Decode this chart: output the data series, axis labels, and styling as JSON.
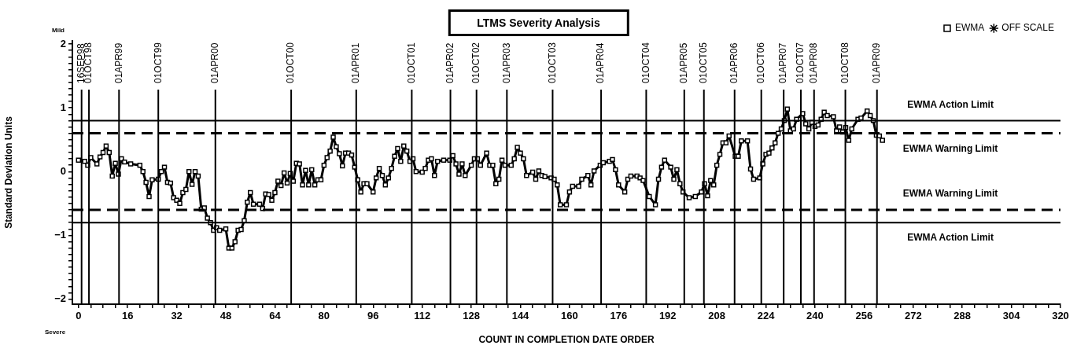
{
  "chart_data": {
    "type": "line",
    "title": "LTMS Severity Analysis",
    "xlabel": "COUNT IN COMPLETION DATE ORDER",
    "ylabel": "Standard Deviation Units",
    "annotations": [
      "Mild",
      "Severe"
    ],
    "legend": "top right",
    "line_style": "solid",
    "xlim": [
      -2,
      320
    ],
    "ylim": [
      -2.08,
      2.05
    ],
    "xticks": [
      0,
      {
        "value": 4,
        "label": null
      },
      {
        "value": 8,
        "label": null
      },
      {
        "value": 12,
        "label": null
      },
      16,
      {
        "value": 20,
        "label": null
      },
      {
        "value": 24,
        "label": null
      },
      {
        "value": 28,
        "label": null
      },
      32,
      {
        "value": 36,
        "label": null
      },
      {
        "value": 40,
        "label": null
      },
      {
        "value": 44,
        "label": null
      },
      48,
      {
        "value": 52,
        "label": null
      },
      {
        "value": 56,
        "label": null
      },
      {
        "value": 60,
        "label": null
      },
      64,
      {
        "value": 68,
        "label": null
      },
      {
        "value": 72,
        "label": null
      },
      {
        "value": 76,
        "label": null
      },
      80,
      {
        "value": 84,
        "label": null
      },
      {
        "value": 88,
        "label": null
      },
      {
        "value": 92,
        "label": null
      },
      96,
      {
        "value": 100,
        "label": null
      },
      {
        "value": 104,
        "label": null
      },
      {
        "value": 108,
        "label": null
      },
      112,
      {
        "value": 116,
        "label": null
      },
      {
        "value": 120,
        "label": null
      },
      {
        "value": 124,
        "label": null
      },
      128,
      {
        "value": 132,
        "label": null
      },
      {
        "value": 136,
        "label": null
      },
      {
        "value": 140,
        "label": null
      },
      144,
      {
        "value": 148,
        "label": null
      },
      {
        "value": 152,
        "label": null
      },
      {
        "value": 156,
        "label": null
      },
      160,
      {
        "value": 164,
        "label": null
      },
      {
        "value": 168,
        "label": null
      },
      {
        "value": 172,
        "label": null
      },
      176,
      {
        "value": 180,
        "label": null
      },
      {
        "value": 184,
        "label": null
      },
      {
        "value": 188,
        "label": null
      },
      192,
      {
        "value": 196,
        "label": null
      },
      {
        "value": 200,
        "label": null
      },
      {
        "value": 204,
        "label": null
      },
      208,
      {
        "value": 212,
        "label": null
      },
      {
        "value": 216,
        "label": null
      },
      {
        "value": 220,
        "label": null
      },
      224,
      {
        "value": 228,
        "label": null
      },
      {
        "value": 232,
        "label": null
      },
      {
        "value": 236,
        "label": null
      },
      240,
      {
        "value": 244,
        "label": null
      },
      {
        "value": 248,
        "label": null
      },
      {
        "value": 252,
        "label": null
      },
      256,
      {
        "value": 260,
        "label": null
      },
      {
        "value": 264,
        "label": null
      },
      {
        "value": 268,
        "label": null
      },
      272,
      {
        "value": 276,
        "label": null
      },
      {
        "value": 280,
        "label": null
      },
      {
        "value": 284,
        "label": null
      },
      288,
      {
        "value": 292,
        "label": null
      },
      {
        "value": 296,
        "label": null
      },
      {
        "value": 300,
        "label": null
      },
      304,
      {
        "value": 308,
        "label": null
      },
      {
        "value": 312,
        "label": null
      },
      {
        "value": 316,
        "label": null
      },
      320
    ],
    "yticks": [
      -2,
      {
        "value": -1.9,
        "label": null
      },
      {
        "value": -1.8,
        "label": null
      },
      {
        "value": -1.7,
        "label": null
      },
      {
        "value": -1.6,
        "label": null
      },
      {
        "value": -1.5,
        "label": null
      },
      {
        "value": -1.4,
        "label": null
      },
      {
        "value": -1.3,
        "label": null
      },
      {
        "value": -1.2,
        "label": null
      },
      {
        "value": -1.1,
        "label": null
      },
      -1,
      {
        "value": -0.9,
        "label": null
      },
      {
        "value": -0.8,
        "label": null
      },
      {
        "value": -0.7,
        "label": null
      },
      {
        "value": -0.6,
        "label": null
      },
      {
        "value": -0.5,
        "label": null
      },
      {
        "value": -0.4,
        "label": null
      },
      {
        "value": -0.3,
        "label": null
      },
      {
        "value": -0.2,
        "label": null
      },
      {
        "value": -0.1,
        "label": null
      },
      0,
      {
        "value": 0.1,
        "label": null
      },
      {
        "value": 0.2,
        "label": null
      },
      {
        "value": 0.3,
        "label": null
      },
      {
        "value": 0.4,
        "label": null
      },
      {
        "value": 0.5,
        "label": null
      },
      {
        "value": 0.6,
        "label": null
      },
      {
        "value": 0.7,
        "label": null
      },
      {
        "value": 0.8,
        "label": null
      },
      {
        "value": 0.9,
        "label": null
      },
      1,
      {
        "value": 1.1,
        "label": null
      },
      {
        "value": 1.2,
        "label": null
      },
      {
        "value": 1.3,
        "label": null
      },
      {
        "value": 1.4,
        "label": null
      },
      {
        "value": 1.5,
        "label": null
      },
      {
        "value": 1.6,
        "label": null
      },
      {
        "value": 1.7,
        "label": null
      },
      {
        "value": 1.8,
        "label": null
      },
      {
        "value": 1.9,
        "label": null
      },
      2
    ],
    "ref_lines": [
      {
        "axis": "y",
        "value": 0.8,
        "label": "EWMA Action Limit",
        "line_style": "solid",
        "color": "#000000"
      },
      {
        "axis": "y",
        "value": 0.6,
        "label": "EWMA Warning Limit",
        "line_style": "dashed",
        "color": "#000000"
      },
      {
        "axis": "y",
        "value": -0.6,
        "label": "EWMA Warning Limit",
        "line_style": "dashed",
        "color": "#000000"
      },
      {
        "axis": "y",
        "value": -0.8,
        "label": "EWMA Action Limit",
        "line_style": "solid",
        "color": "#000000"
      },
      {
        "axis": "x",
        "value": 1,
        "label": "16SEP98"
      },
      {
        "axis": "x",
        "value": 3.4,
        "label": "01OCT98"
      },
      {
        "axis": "x",
        "value": 13.2,
        "label": "01APR99"
      },
      {
        "axis": "x",
        "value": 26,
        "label": "01OCT99"
      },
      {
        "axis": "x",
        "value": 44.6,
        "label": "01APR00"
      },
      {
        "axis": "x",
        "value": 69.3,
        "label": "01OCT00"
      },
      {
        "axis": "x",
        "value": 90.5,
        "label": "01APR01"
      },
      {
        "axis": "x",
        "value": 108.6,
        "label": "01OCT01"
      },
      {
        "axis": "x",
        "value": 121.2,
        "label": "01APR02"
      },
      {
        "axis": "x",
        "value": 129.7,
        "label": "01OCT02"
      },
      {
        "axis": "x",
        "value": 139.6,
        "label": "01APR03"
      },
      {
        "axis": "x",
        "value": 154.5,
        "label": "01OCT03"
      },
      {
        "axis": "x",
        "value": 170.3,
        "label": "01APR04"
      },
      {
        "axis": "x",
        "value": 185,
        "label": "01OCT04"
      },
      {
        "axis": "x",
        "value": 197.4,
        "label": "01APR05"
      },
      {
        "axis": "x",
        "value": 203.8,
        "label": "01OCT05"
      },
      {
        "axis": "x",
        "value": 213.8,
        "label": "01APR06"
      },
      {
        "axis": "x",
        "value": 222.5,
        "label": "01OCT06"
      },
      {
        "axis": "x",
        "value": 229.8,
        "label": "01APR07"
      },
      {
        "axis": "x",
        "value": 235.4,
        "label": "01OCT07"
      },
      {
        "axis": "x",
        "value": 239.7,
        "label": "01APR08"
      },
      {
        "axis": "x",
        "value": 249.9,
        "label": "01OCT08"
      },
      {
        "axis": "x",
        "value": 260.2,
        "label": "01APR09"
      }
    ],
    "series": [
      {
        "name": "EWMA",
        "color": "#000000",
        "marker": "square",
        "x": [
          0,
          2,
          3,
          4,
          6,
          7,
          8,
          9,
          10,
          11,
          12,
          13,
          14,
          15,
          17,
          20,
          21,
          22,
          23,
          24,
          26,
          27,
          28,
          29,
          30,
          31,
          32,
          33,
          34,
          35,
          36,
          37,
          38,
          39,
          40,
          41,
          42,
          43,
          44,
          45,
          46,
          48,
          49,
          50,
          51,
          52,
          53,
          54,
          55,
          56,
          57,
          59,
          60,
          61,
          62,
          63,
          64,
          65,
          66,
          67,
          68,
          69,
          70,
          71,
          72,
          73,
          74,
          75,
          76,
          77,
          78,
          79,
          80,
          81,
          82,
          83,
          84,
          85,
          86,
          87,
          88,
          89,
          90,
          91,
          92,
          93,
          94,
          96,
          97,
          98,
          99,
          100,
          101,
          102,
          103,
          104,
          105,
          106,
          107,
          108,
          109,
          110,
          112,
          113,
          114,
          115,
          116,
          117,
          119,
          121,
          122,
          123,
          124,
          125,
          126,
          128,
          129,
          130,
          131,
          133,
          134,
          135,
          136,
          137,
          138,
          139,
          141,
          142,
          143,
          144,
          145,
          146,
          148,
          149,
          150,
          151,
          152,
          154,
          155,
          156,
          157,
          159,
          160,
          161,
          163,
          164,
          166,
          167,
          168,
          170,
          171,
          173,
          174,
          175,
          176,
          178,
          179,
          180,
          182,
          183,
          184,
          186,
          188,
          189,
          190,
          191,
          193,
          194,
          195,
          196,
          197,
          199,
          201,
          203,
          204,
          205,
          206,
          207,
          208,
          209,
          210,
          211,
          212,
          214,
          215,
          216,
          218,
          219,
          220,
          222,
          223,
          224,
          225,
          226,
          227,
          228,
          229,
          230,
          231,
          232,
          233,
          234,
          236,
          237,
          238,
          239,
          240,
          241,
          242,
          243,
          244,
          246,
          247,
          248,
          249,
          250,
          251,
          252,
          254,
          255,
          257,
          258,
          259,
          260,
          261,
          262
        ],
        "values": [
          0.18,
          0.16,
          0.1,
          0.22,
          0.12,
          0.23,
          0.3,
          0.4,
          0.3,
          -0.07,
          0.13,
          -0.04,
          0.2,
          0.15,
          0.12,
          0.1,
          0.0,
          -0.17,
          -0.39,
          -0.13,
          -0.12,
          0.0,
          0.07,
          -0.17,
          -0.18,
          -0.41,
          -0.45,
          -0.5,
          -0.33,
          -0.28,
          0.0,
          -0.2,
          0.0,
          -0.07,
          -0.59,
          -0.57,
          -0.73,
          -0.8,
          -0.92,
          -0.88,
          -0.92,
          -0.9,
          -1.2,
          -1.2,
          -1.1,
          -0.92,
          -0.91,
          -0.77,
          -0.48,
          -0.33,
          -0.51,
          -0.51,
          -0.58,
          -0.35,
          -0.36,
          -0.45,
          -0.33,
          -0.15,
          -0.22,
          -0.02,
          -0.18,
          -0.03,
          -0.15,
          0.13,
          0.12,
          -0.21,
          0.02,
          -0.21,
          0.03,
          -0.21,
          -0.13,
          -0.13,
          0.1,
          0.22,
          0.32,
          0.54,
          0.39,
          0.28,
          0.09,
          0.29,
          0.29,
          0.26,
          0.07,
          -0.13,
          -0.32,
          -0.19,
          -0.19,
          -0.32,
          -0.1,
          0.05,
          -0.06,
          -0.21,
          -0.1,
          0.05,
          0.24,
          0.36,
          0.16,
          0.4,
          0.32,
          0.16,
          0.2,
          0.0,
          -0.01,
          0.05,
          0.18,
          0.2,
          -0.06,
          0.16,
          0.18,
          0.18,
          0.25,
          0.12,
          -0.04,
          0.12,
          -0.06,
          0.1,
          0.2,
          0.2,
          0.1,
          0.29,
          0.1,
          0.1,
          -0.19,
          -0.12,
          0.18,
          0.1,
          0.1,
          0.2,
          0.38,
          0.29,
          0.2,
          -0.06,
          -0.01,
          -0.12,
          0.01,
          -0.06,
          -0.08,
          -0.1,
          -0.12,
          -0.21,
          -0.52,
          -0.52,
          -0.32,
          -0.23,
          -0.23,
          -0.12,
          -0.06,
          -0.21,
          0.01,
          0.1,
          0.14,
          0.16,
          0.19,
          0.03,
          -0.21,
          -0.32,
          -0.12,
          -0.07,
          -0.07,
          -0.1,
          -0.14,
          -0.39,
          -0.52,
          -0.12,
          0.07,
          0.18,
          0.07,
          -0.12,
          0.03,
          -0.19,
          -0.32,
          -0.41,
          -0.39,
          -0.32,
          -0.19,
          -0.38,
          -0.14,
          -0.21,
          0.1,
          0.27,
          0.45,
          0.45,
          0.56,
          0.24,
          0.24,
          0.48,
          0.48,
          0.04,
          -0.12,
          -0.1,
          0.12,
          0.27,
          0.29,
          0.37,
          0.45,
          0.6,
          0.67,
          0.8,
          0.98,
          0.64,
          0.67,
          0.82,
          0.91,
          0.75,
          0.67,
          0.77,
          0.71,
          0.73,
          0.82,
          0.93,
          0.88,
          0.86,
          0.64,
          0.7,
          0.62,
          0.69,
          0.49,
          0.67,
          0.82,
          0.84,
          0.95,
          0.88,
          0.8,
          0.57,
          0.56,
          0.49
        ]
      },
      {
        "name": "OFF SCALE",
        "color": "#000000",
        "marker": "star"
      }
    ]
  }
}
